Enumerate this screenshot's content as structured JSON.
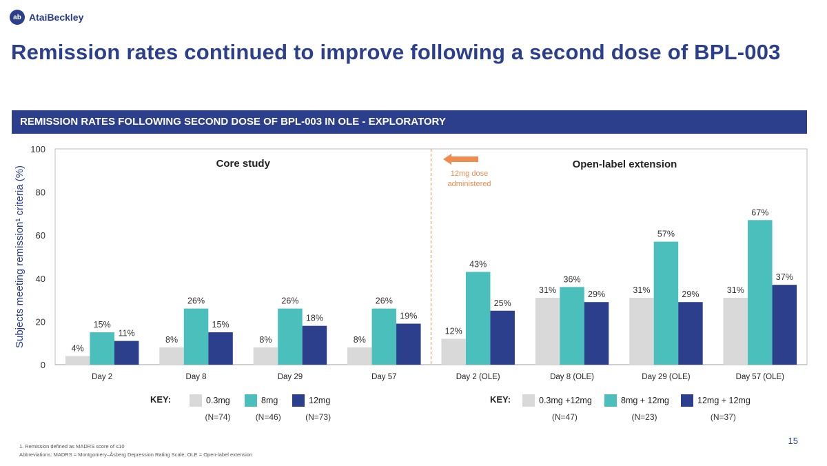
{
  "logo": {
    "mark": "ab",
    "text": "AtaiBeckley"
  },
  "title": "Remission rates continued to improve following a second dose of BPL-003",
  "banner": "REMISSION RATES FOLLOWING SECOND DOSE OF BPL-003 IN OLE - EXPLORATORY",
  "page_number": "15",
  "footnotes": {
    "line1": "1. Remission defined as MADRS score of ≤10",
    "line2": "Abbreviations: MADRS = Montgomery–Åsberg Depression Rating Scale; OLE = Open-label extension"
  },
  "arrow_note": {
    "line1": "12mg dose",
    "line2": "administered"
  },
  "colors": {
    "navy": "#2b3f8c",
    "teal": "#4bbfbb",
    "gray": "#d9d9d9",
    "orange": "#f08c50"
  },
  "chart_data": {
    "type": "bar",
    "ylabel": "Subjects meeting remission¹ criteria (%)",
    "ylim": [
      0,
      100
    ],
    "yticks": [
      0,
      20,
      40,
      60,
      80,
      100
    ],
    "grid": false,
    "sections": [
      {
        "title": "Core study",
        "categories": [
          "Day 2",
          "Day 8",
          "Day 29",
          "Day 57"
        ]
      },
      {
        "title": "Open-label extension",
        "categories": [
          "Day 2 (OLE)",
          "Day 8 (OLE)",
          "Day 29 (OLE)",
          "Day 57 (OLE)"
        ]
      }
    ],
    "categories": [
      "Day 2",
      "Day 8",
      "Day 29",
      "Day 57",
      "Day 2 (OLE)",
      "Day 8 (OLE)",
      "Day 29 (OLE)",
      "Day 57 (OLE)"
    ],
    "series": [
      {
        "name": "0.3mg",
        "ole_name": "0.3mg +12mg",
        "n": "(N=74)",
        "ole_n": "(N=47)",
        "color": "#d9d9d9",
        "values": [
          4,
          8,
          8,
          8,
          12,
          31,
          31,
          31
        ],
        "labels": [
          "4%",
          "8%",
          "8%",
          "8%",
          "12%",
          "31%",
          "31%",
          "31%"
        ]
      },
      {
        "name": "8mg",
        "ole_name": "8mg + 12mg",
        "n": "(N=46)",
        "ole_n": "(N=23)",
        "color": "#4bbfbb",
        "values": [
          15,
          26,
          26,
          26,
          43,
          36,
          57,
          67
        ],
        "labels": [
          "15%",
          "26%",
          "26%",
          "26%",
          "43%",
          "36%",
          "57%",
          "67%"
        ]
      },
      {
        "name": "12mg",
        "ole_name": "12mg + 12mg",
        "n": "(N=73)",
        "ole_n": "(N=37)",
        "color": "#2b3f8c",
        "values": [
          11,
          15,
          18,
          19,
          25,
          29,
          29,
          37
        ],
        "labels": [
          "11%",
          "15%",
          "18%",
          "19%",
          "25%",
          "29%",
          "29%",
          "37%"
        ]
      }
    ],
    "key_label": "KEY:"
  }
}
